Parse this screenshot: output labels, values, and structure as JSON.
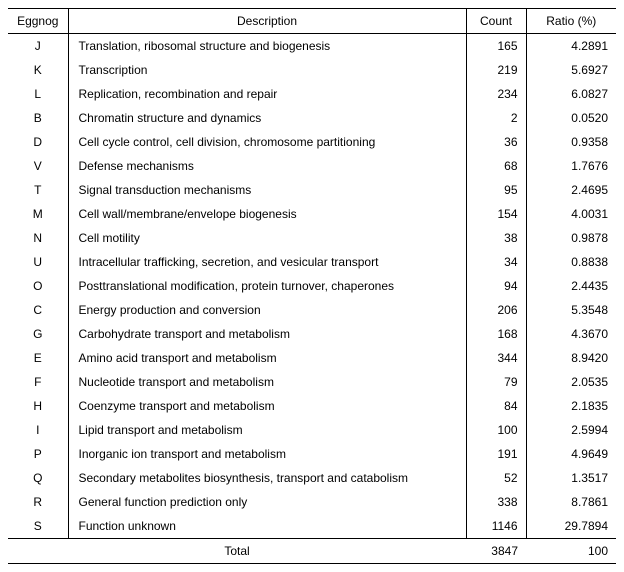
{
  "table": {
    "columns": [
      "Eggnog",
      "Description",
      "Count",
      "Ratio (%)"
    ],
    "rows": [
      {
        "egg": "J",
        "desc": "Translation, ribosomal structure and biogenesis",
        "count": "165",
        "ratio": "4.2891"
      },
      {
        "egg": "K",
        "desc": "Transcription",
        "count": "219",
        "ratio": "5.6927"
      },
      {
        "egg": "L",
        "desc": "Replication, recombination and repair",
        "count": "234",
        "ratio": "6.0827"
      },
      {
        "egg": "B",
        "desc": "Chromatin structure and dynamics",
        "count": "2",
        "ratio": "0.0520"
      },
      {
        "egg": "D",
        "desc": "Cell cycle control, cell division, chromosome partitioning",
        "count": "36",
        "ratio": "0.9358"
      },
      {
        "egg": "V",
        "desc": "Defense mechanisms",
        "count": "68",
        "ratio": "1.7676"
      },
      {
        "egg": "T",
        "desc": "Signal transduction mechanisms",
        "count": "95",
        "ratio": "2.4695"
      },
      {
        "egg": "M",
        "desc": "Cell wall/membrane/envelope biogenesis",
        "count": "154",
        "ratio": "4.0031"
      },
      {
        "egg": "N",
        "desc": "Cell motility",
        "count": "38",
        "ratio": "0.9878"
      },
      {
        "egg": "U",
        "desc": "Intracellular trafficking, secretion, and vesicular transport",
        "count": "34",
        "ratio": "0.8838"
      },
      {
        "egg": "O",
        "desc": "Posttranslational modification, protein turnover, chaperones",
        "count": "94",
        "ratio": "2.4435"
      },
      {
        "egg": "C",
        "desc": "Energy production and conversion",
        "count": "206",
        "ratio": "5.3548"
      },
      {
        "egg": "G",
        "desc": "Carbohydrate transport and metabolism",
        "count": "168",
        "ratio": "4.3670"
      },
      {
        "egg": "E",
        "desc": "Amino acid transport and metabolism",
        "count": "344",
        "ratio": "8.9420"
      },
      {
        "egg": "F",
        "desc": "Nucleotide transport and metabolism",
        "count": "79",
        "ratio": "2.0535"
      },
      {
        "egg": "H",
        "desc": "Coenzyme transport and metabolism",
        "count": "84",
        "ratio": "2.1835"
      },
      {
        "egg": "I",
        "desc": "Lipid transport and metabolism",
        "count": "100",
        "ratio": "2.5994"
      },
      {
        "egg": "P",
        "desc": "Inorganic ion transport and metabolism",
        "count": "191",
        "ratio": "4.9649"
      },
      {
        "egg": "Q",
        "desc": "Secondary metabolites biosynthesis, transport and catabolism",
        "count": "52",
        "ratio": "1.3517"
      },
      {
        "egg": "R",
        "desc": "General function prediction only",
        "count": "338",
        "ratio": "8.7861"
      },
      {
        "egg": "S",
        "desc": "Function unknown",
        "count": "1146",
        "ratio": "29.7894"
      }
    ],
    "total": {
      "label": "Total",
      "count": "3847",
      "ratio": "100"
    }
  }
}
